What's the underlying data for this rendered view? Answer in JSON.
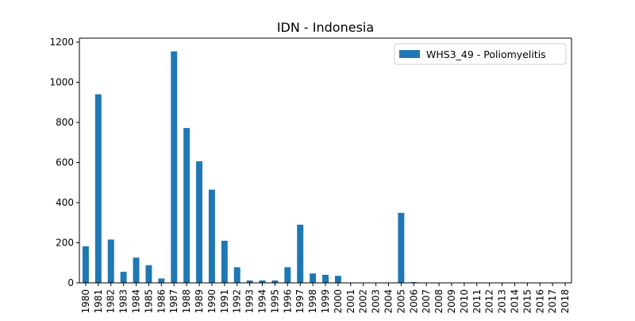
{
  "chart_data": {
    "type": "bar",
    "title": "IDN - Indonesia",
    "xlabel": "",
    "ylabel": "",
    "ylim": [
      0,
      1220
    ],
    "yticks": [
      0,
      200,
      400,
      600,
      800,
      1000,
      1200
    ],
    "grid": false,
    "legend_position": "top-right",
    "categories": [
      "1980",
      "1981",
      "1982",
      "1983",
      "1984",
      "1985",
      "1986",
      "1987",
      "1988",
      "1989",
      "1990",
      "1991",
      "1992",
      "1993",
      "1994",
      "1995",
      "1996",
      "1997",
      "1998",
      "1999",
      "2000",
      "2001",
      "2002",
      "2003",
      "2004",
      "2005",
      "2006",
      "2007",
      "2008",
      "2009",
      "2010",
      "2011",
      "2012",
      "2013",
      "2014",
      "2015",
      "2016",
      "2017",
      "2018"
    ],
    "series": [
      {
        "name": "WHS3_49 - Poliomyelitis",
        "color": "#1f77b4",
        "values": [
          182,
          940,
          216,
          55,
          126,
          88,
          22,
          1154,
          772,
          606,
          465,
          210,
          78,
          12,
          12,
          12,
          78,
          290,
          47,
          40,
          35,
          0,
          0,
          0,
          0,
          349,
          4,
          0,
          0,
          0,
          0,
          0,
          0,
          0,
          0,
          0,
          0,
          0,
          0
        ]
      }
    ]
  }
}
